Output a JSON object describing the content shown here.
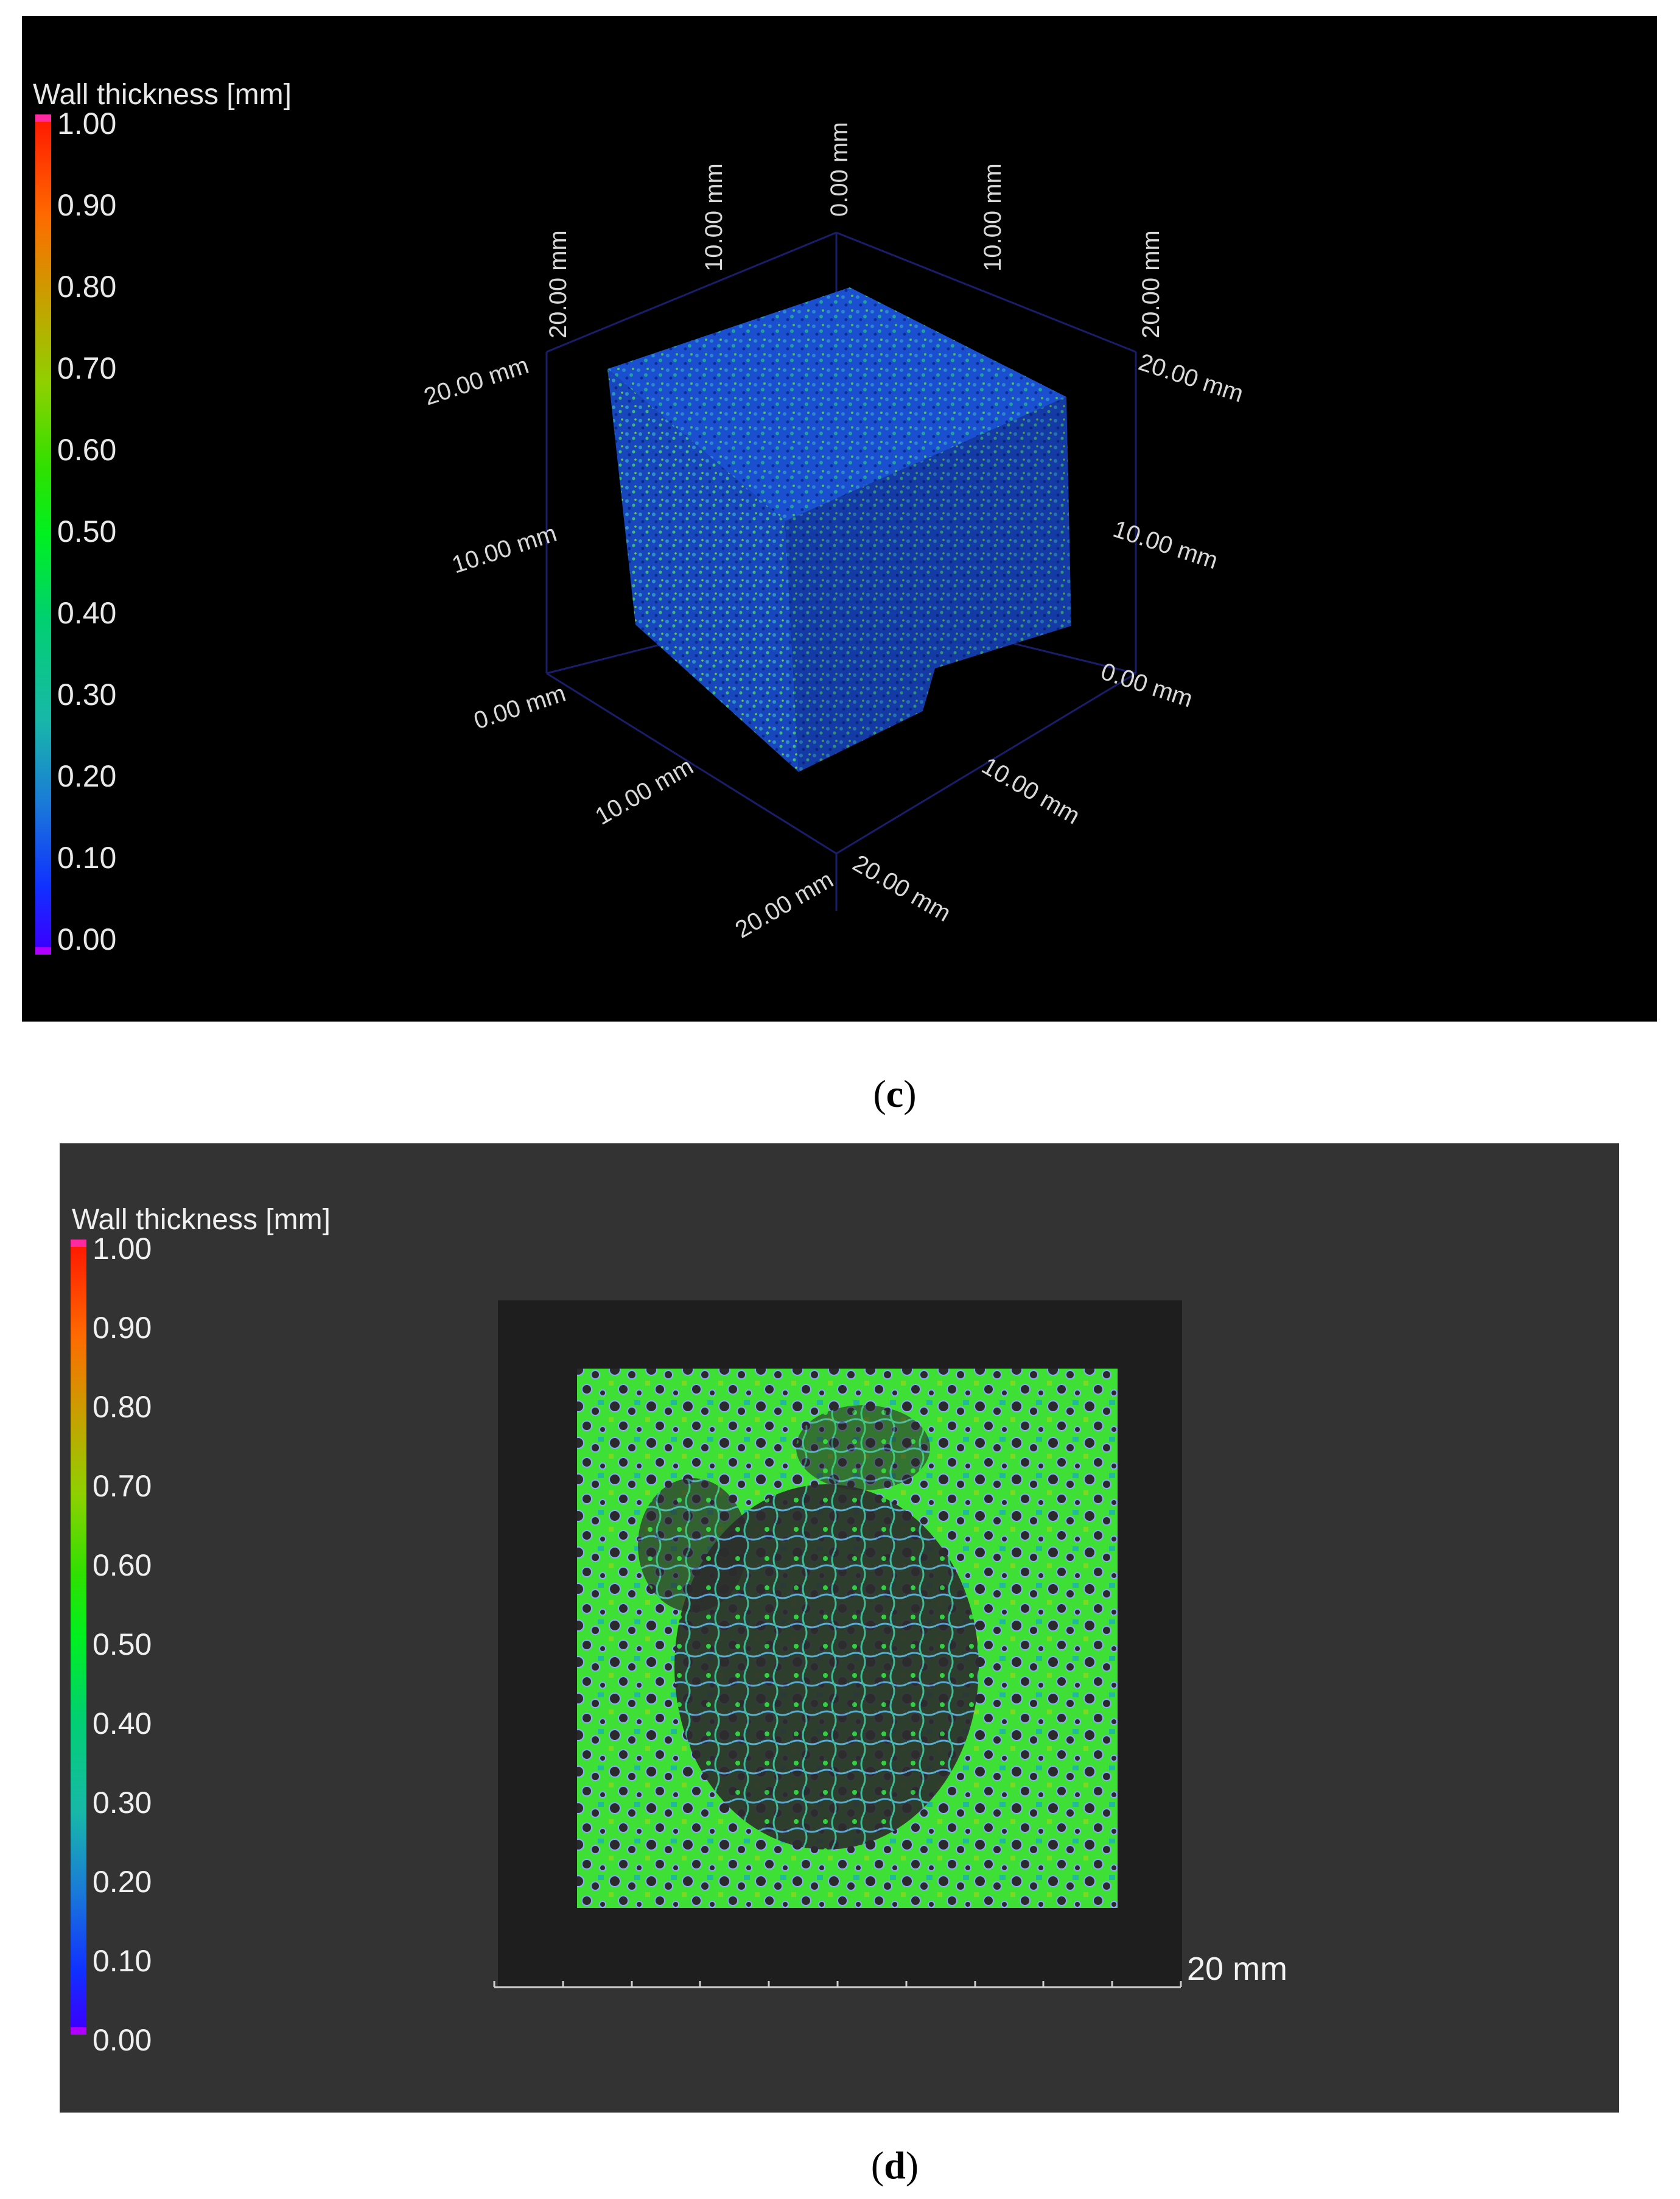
{
  "panel_c": {
    "label": "c",
    "colorbar": {
      "title": "Wall thickness [mm]",
      "ticks": [
        "1.00",
        "0.90",
        "0.80",
        "0.70",
        "0.60",
        "0.50",
        "0.40",
        "0.30",
        "0.20",
        "0.10",
        "0.00"
      ]
    },
    "axis_labels": {
      "top_center": "0.00 mm",
      "top_left_vertical": "10.00 mm",
      "top_right_vertical": "10.00 mm",
      "left_corner_vertical": "20.00 mm",
      "right_corner_vertical": "20.00 mm",
      "left_20": "20.00 mm",
      "left_10": "10.00 mm",
      "left_0": "0.00 mm",
      "right_20": "20.00 mm",
      "right_10": "10.00 mm",
      "right_0": "0.00 mm",
      "bottom_left_10": "10.00 mm",
      "bottom_left_20": "20.00 mm",
      "bottom_right_10": "10.00 mm",
      "bottom_right_20": "20.00 mm"
    }
  },
  "panel_d": {
    "label": "d",
    "colorbar": {
      "title": "Wall thickness [mm]",
      "ticks": [
        "1.00",
        "0.90",
        "0.80",
        "0.70",
        "0.60",
        "0.50",
        "0.40",
        "0.30",
        "0.20",
        "0.10",
        "0.00"
      ]
    },
    "scale_bar": "20 mm"
  },
  "colors": {
    "colormap": [
      "#ff1a00",
      "#ff6a00",
      "#c8a000",
      "#8fd000",
      "#30e000",
      "#00f020",
      "#00d070",
      "#18b8a8",
      "#1a7ad8",
      "#1030ff",
      "#3a00ff"
    ],
    "endcap": "#ff2aa0",
    "panel_c_bg": "#000000",
    "panel_d_bg": "#333333"
  }
}
